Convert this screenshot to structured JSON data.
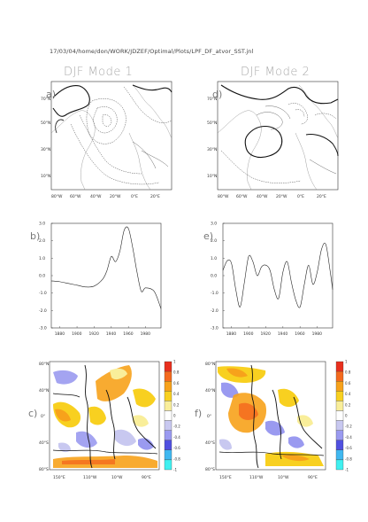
{
  "header": "17/03/04/home/don/WORK/JDZEF/Optimal/Plots/LPF_DF_atvor_SST.jnl",
  "titles": [
    "DJF Mode 1",
    "DJF Mode 2"
  ],
  "panel_labels": [
    "a)",
    "b)",
    "c)",
    "d)",
    "e)",
    "f)"
  ],
  "map_lat_labels": [
    "70°N",
    "50°N",
    "30°N",
    "10°N"
  ],
  "map_lon_labels": [
    "80°W",
    "60°W",
    "40°W",
    "20°W",
    "0°E",
    "20°E"
  ],
  "ts_y_labels": [
    "3.0",
    "2.0",
    "1.0",
    "0.0",
    "-1.0",
    "-2.0",
    "-3.0"
  ],
  "ts_x_labels": [
    "1880",
    "1900",
    "1920",
    "1940",
    "1960",
    "1980"
  ],
  "sst_lat_labels": [
    "80°N",
    "40°N",
    "0°",
    "40°S",
    "80°S"
  ],
  "sst_lon_labels": [
    "150°E",
    "110°W",
    "10°W",
    "90°E"
  ],
  "colorbar_labels": [
    "1",
    "0.8",
    "0.6",
    "0.4",
    "0.2",
    "0",
    "-0.2",
    "-0.4",
    "-0.6",
    "-0.8",
    "-1"
  ],
  "colorbar_colors": [
    "#e8301e",
    "#f46a1e",
    "#f7a21b",
    "#f8d020",
    "#f9ee9a",
    "#ffffff",
    "#c8c8f0",
    "#9a9af0",
    "#5050e0",
    "#40b8f0",
    "#40f0f0"
  ],
  "chart_data": [
    {
      "type": "line",
      "panel": "b",
      "x": [
        1870,
        1880,
        1890,
        1900,
        1910,
        1920,
        1930,
        1935,
        1940,
        1945,
        1950,
        1955,
        1960,
        1965,
        1970,
        1975,
        1980,
        1990,
        1998
      ],
      "y": [
        -0.3,
        -0.35,
        -0.45,
        -0.55,
        -0.65,
        -0.6,
        -0.2,
        0.3,
        1.1,
        0.8,
        1.4,
        2.6,
        2.7,
        1.6,
        0.2,
        -0.9,
        -0.7,
        -0.9,
        -1.9
      ],
      "xlim": [
        1870,
        1998
      ],
      "ylim": [
        -3,
        3
      ]
    },
    {
      "type": "line",
      "panel": "e",
      "x": [
        1870,
        1875,
        1880,
        1885,
        1890,
        1895,
        1900,
        1905,
        1910,
        1915,
        1920,
        1925,
        1930,
        1935,
        1940,
        1945,
        1950,
        1955,
        1960,
        1965,
        1970,
        1975,
        1980,
        1985,
        1990,
        1995,
        1998
      ],
      "y": [
        0.3,
        0.85,
        0.7,
        -0.8,
        -1.8,
        -0.4,
        1.1,
        0.8,
        0.0,
        0.5,
        0.6,
        0.3,
        -0.8,
        -1.3,
        0.2,
        0.8,
        -0.4,
        -1.4,
        -1.8,
        -0.5,
        0.6,
        -0.5,
        0.2,
        1.5,
        1.8,
        0.3,
        -0.8
      ],
      "xlim": [
        1870,
        1998
      ],
      "ylim": [
        -3,
        3
      ]
    }
  ]
}
